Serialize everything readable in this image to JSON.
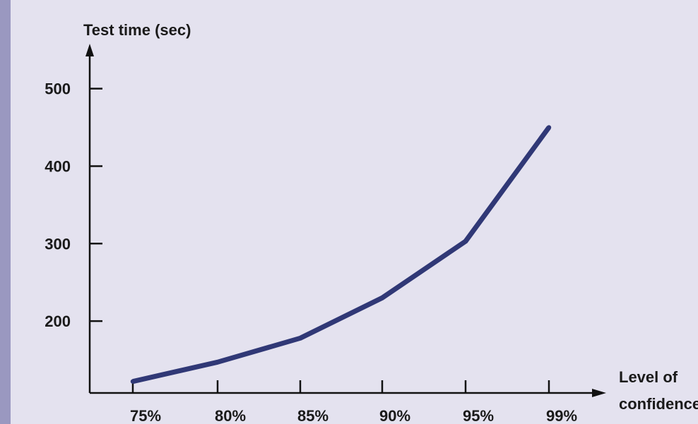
{
  "colors": {
    "background": "#e4e2ef",
    "side_bar": "#9a98c0",
    "series_line": "#303876",
    "axis": "#111111"
  },
  "chart_data": {
    "type": "line",
    "title": "",
    "ylabel": "Test time (sec)",
    "xlabel_lines": [
      "Level of",
      "confidence"
    ],
    "categories": [
      "75%",
      "80%",
      "85%",
      "90%",
      "95%",
      "99%"
    ],
    "series": [
      {
        "values": [
          122,
          147,
          178,
          230,
          303,
          450
        ]
      }
    ],
    "y_ticks": [
      "200",
      "300",
      "400",
      "500"
    ],
    "y_tick_values": [
      200,
      300,
      400,
      500
    ],
    "ylim": [
      100,
      570
    ],
    "grid": false,
    "legend": "none"
  }
}
